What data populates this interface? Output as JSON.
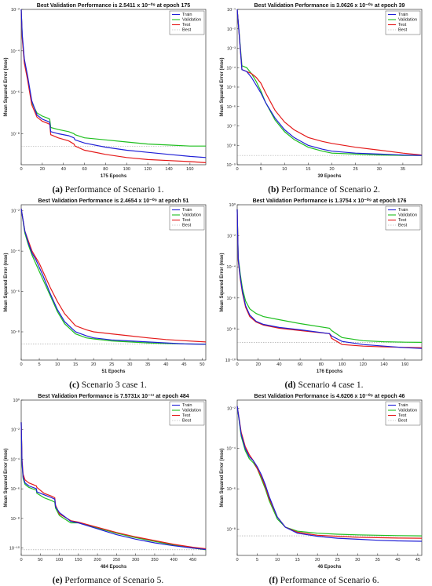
{
  "chart_data": [
    {
      "type": "line",
      "title": "Best Validation Performance is 2.5411 x 10^-09 at epoch 175",
      "title_pre": "Best Validation Performance is 2.5411 x 10",
      "title_exp": "-09",
      "title_post": " at epoch 175",
      "xlabel": "175 Epochs",
      "ylabel": "Mean Squared Error  (mse)",
      "xlim": [
        0,
        175
      ],
      "ylim_exp": [
        -9.5,
        -2
      ],
      "log_y": true,
      "xticks": [
        0,
        20,
        40,
        60,
        80,
        100,
        120,
        140,
        160
      ],
      "yticks_exp": [
        -8,
        -6,
        -4,
        -2
      ],
      "best_exp": -8.6,
      "legend": [
        "Train",
        "Validation",
        "Test",
        "Best"
      ],
      "series": [
        {
          "name": "Train",
          "color": "#1f1fd6",
          "x": [
            0,
            1,
            3,
            6,
            10,
            15,
            20,
            25,
            27,
            28,
            35,
            45,
            50,
            51,
            60,
            80,
            100,
            120,
            140,
            160,
            175
          ],
          "y_exp": [
            -2,
            -3.2,
            -4.4,
            -5.2,
            -6.4,
            -7.1,
            -7.3,
            -7.4,
            -7.45,
            -7.9,
            -8.0,
            -8.1,
            -8.2,
            -8.3,
            -8.45,
            -8.65,
            -8.8,
            -8.9,
            -9.0,
            -9.1,
            -9.15
          ]
        },
        {
          "name": "Validation",
          "color": "#1fbf1f",
          "x": [
            0,
            1,
            3,
            6,
            10,
            15,
            20,
            25,
            27,
            28,
            35,
            45,
            50,
            51,
            60,
            80,
            100,
            120,
            140,
            160,
            175
          ],
          "y_exp": [
            -2,
            -3.3,
            -4.5,
            -5.3,
            -6.5,
            -7.0,
            -7.15,
            -7.25,
            -7.3,
            -7.7,
            -7.8,
            -7.9,
            -8.0,
            -8.05,
            -8.2,
            -8.3,
            -8.4,
            -8.5,
            -8.55,
            -8.6,
            -8.6
          ]
        },
        {
          "name": "Test",
          "color": "#e41a1a",
          "x": [
            0,
            1,
            3,
            6,
            10,
            15,
            20,
            25,
            27,
            28,
            35,
            45,
            50,
            51,
            60,
            80,
            100,
            120,
            140,
            160,
            175
          ],
          "y_exp": [
            -2,
            -3.4,
            -4.6,
            -5.4,
            -6.6,
            -7.2,
            -7.4,
            -7.5,
            -7.55,
            -8.05,
            -8.2,
            -8.35,
            -8.5,
            -8.6,
            -8.8,
            -9.0,
            -9.15,
            -9.25,
            -9.3,
            -9.35,
            -9.4
          ]
        }
      ],
      "caption_label": "(a)",
      "caption_text": " Performance of Scenario 1."
    },
    {
      "type": "line",
      "title": "Best Validation Performance is 3.0626 x 10^-09 at epoch 39",
      "title_pre": "Best Validation Performance is 3.0626 x 10",
      "title_exp": "-09",
      "title_post": " at epoch 39",
      "xlabel": "39 Epochs",
      "ylabel": "Mean Squared Error  (mse)",
      "xlim": [
        0,
        39
      ],
      "ylim_exp": [
        -9,
        -1
      ],
      "log_y": true,
      "xticks": [
        0,
        5,
        10,
        15,
        20,
        25,
        30,
        35
      ],
      "yticks_exp": [
        -9,
        -8,
        -7,
        -6,
        -5,
        -4,
        -3,
        -2,
        -1
      ],
      "best_exp": -8.52,
      "legend": [
        "Train",
        "Validation",
        "Test",
        "Best"
      ],
      "series": [
        {
          "name": "Train",
          "color": "#1f1fd6",
          "x": [
            0,
            1,
            2,
            3,
            4,
            5,
            6,
            8,
            10,
            12,
            15,
            18,
            20,
            25,
            30,
            35,
            39
          ],
          "y_exp": [
            -1,
            -4.1,
            -4.2,
            -4.5,
            -4.9,
            -5.3,
            -5.8,
            -6.6,
            -7.2,
            -7.6,
            -8.0,
            -8.2,
            -8.3,
            -8.4,
            -8.45,
            -8.5,
            -8.52
          ]
        },
        {
          "name": "Validation",
          "color": "#1fbf1f",
          "x": [
            0,
            1,
            2,
            3,
            4,
            5,
            6,
            8,
            10,
            12,
            15,
            18,
            20,
            25,
            30,
            35,
            39
          ],
          "y_exp": [
            -1,
            -3.9,
            -4.0,
            -4.3,
            -4.7,
            -5.2,
            -5.8,
            -6.7,
            -7.3,
            -7.7,
            -8.1,
            -8.3,
            -8.4,
            -8.45,
            -8.5,
            -8.52,
            -8.52
          ]
        },
        {
          "name": "Test",
          "color": "#e41a1a",
          "x": [
            0,
            1,
            2,
            3,
            4,
            5,
            6,
            8,
            10,
            12,
            15,
            18,
            20,
            25,
            30,
            35,
            39
          ],
          "y_exp": [
            -1,
            -4.1,
            -4.2,
            -4.3,
            -4.5,
            -4.8,
            -5.3,
            -6.2,
            -6.8,
            -7.2,
            -7.6,
            -7.8,
            -7.9,
            -8.1,
            -8.25,
            -8.4,
            -8.5
          ]
        }
      ],
      "caption_label": "(b)",
      "caption_text": " Performance of Scenario 2."
    },
    {
      "type": "line",
      "title": "Best Validation Performance is 2.4654 x 10^-09 at epoch 51",
      "title_pre": "Best Validation Performance is 2.4654 x 10",
      "title_exp": "-09",
      "title_post": " at epoch 51",
      "xlabel": "51 Epochs",
      "ylabel": "Mean Squared Error  (mse)",
      "xlim": [
        0,
        51
      ],
      "ylim_exp": [
        -9.4,
        -1.7
      ],
      "log_y": true,
      "xticks": [
        0,
        5,
        10,
        15,
        20,
        25,
        30,
        35,
        40,
        45,
        50
      ],
      "yticks_exp": [
        -8,
        -6,
        -4,
        -2
      ],
      "best_exp": -8.6,
      "legend": [
        "Train",
        "Validation",
        "Test",
        "Best"
      ],
      "series": [
        {
          "name": "Train",
          "color": "#1f1fd6",
          "x": [
            0,
            1,
            2,
            3,
            4,
            5,
            6,
            8,
            10,
            12,
            15,
            18,
            20,
            25,
            30,
            35,
            40,
            45,
            51
          ],
          "y_exp": [
            -1.9,
            -3.0,
            -3.6,
            -4.1,
            -4.4,
            -4.8,
            -5.2,
            -6.1,
            -6.9,
            -7.5,
            -8.0,
            -8.2,
            -8.3,
            -8.4,
            -8.45,
            -8.5,
            -8.55,
            -8.6,
            -8.62
          ]
        },
        {
          "name": "Validation",
          "color": "#1fbf1f",
          "x": [
            0,
            1,
            2,
            3,
            4,
            5,
            6,
            8,
            10,
            12,
            15,
            18,
            20,
            25,
            30,
            35,
            40,
            45,
            51
          ],
          "y_exp": [
            -1.9,
            -3.1,
            -3.7,
            -4.2,
            -4.6,
            -5.0,
            -5.4,
            -6.2,
            -7.0,
            -7.6,
            -8.1,
            -8.3,
            -8.35,
            -8.45,
            -8.5,
            -8.55,
            -8.58,
            -8.6,
            -8.61
          ]
        },
        {
          "name": "Test",
          "color": "#e41a1a",
          "x": [
            0,
            1,
            2,
            3,
            4,
            5,
            6,
            8,
            10,
            12,
            15,
            18,
            20,
            25,
            30,
            35,
            40,
            45,
            51
          ],
          "y_exp": [
            -1.9,
            -3.0,
            -3.5,
            -4.0,
            -4.3,
            -4.6,
            -5.0,
            -5.8,
            -6.5,
            -7.1,
            -7.7,
            -7.9,
            -8.0,
            -8.1,
            -8.2,
            -8.3,
            -8.38,
            -8.44,
            -8.5
          ]
        }
      ],
      "caption_label": "(c)",
      "caption_text": " Scenario 3 case 1."
    },
    {
      "type": "line",
      "title": "Best Validation Performance is 1.3754 x 10^-09 at epoch 176",
      "title_pre": "Best Validation Performance is 1.3754 x 10",
      "title_exp": "-09",
      "title_post": " at epoch 176",
      "xlabel": "176 Epochs",
      "ylabel": "Mean Squared Error  (mse)",
      "xlim": [
        0,
        176
      ],
      "ylim_exp": [
        -10,
        0
      ],
      "log_y": true,
      "xticks": [
        0,
        20,
        40,
        60,
        80,
        100,
        120,
        140,
        160
      ],
      "yticks_exp": [
        -10,
        -8,
        -6,
        -4,
        -2,
        0
      ],
      "best_exp": -8.86,
      "legend": [
        "Train",
        "Validation",
        "Test",
        "Best"
      ],
      "series": [
        {
          "name": "Train",
          "color": "#1f1fd6",
          "x": [
            0,
            1,
            3,
            5,
            8,
            12,
            18,
            25,
            40,
            60,
            88,
            90,
            100,
            120,
            140,
            160,
            176
          ],
          "y_exp": [
            -0.3,
            -3.5,
            -4.7,
            -5.6,
            -6.5,
            -7.1,
            -7.5,
            -7.7,
            -7.9,
            -8.05,
            -8.3,
            -8.45,
            -8.8,
            -9.0,
            -9.1,
            -9.2,
            -9.25
          ]
        },
        {
          "name": "Validation",
          "color": "#1fbf1f",
          "x": [
            0,
            1,
            3,
            5,
            8,
            12,
            18,
            25,
            40,
            60,
            88,
            90,
            100,
            120,
            140,
            160,
            176
          ],
          "y_exp": [
            -0.3,
            -3.4,
            -4.5,
            -5.4,
            -6.2,
            -6.7,
            -7.0,
            -7.2,
            -7.4,
            -7.65,
            -7.95,
            -8.1,
            -8.55,
            -8.75,
            -8.82,
            -8.85,
            -8.86
          ]
        },
        {
          "name": "Test",
          "color": "#e41a1a",
          "x": [
            0,
            1,
            3,
            5,
            8,
            12,
            18,
            25,
            40,
            60,
            88,
            90,
            100,
            120,
            140,
            160,
            176
          ],
          "y_exp": [
            -0.3,
            -3.6,
            -4.8,
            -5.7,
            -6.6,
            -7.2,
            -7.55,
            -7.75,
            -7.95,
            -8.1,
            -8.3,
            -8.6,
            -9.0,
            -9.1,
            -9.15,
            -9.18,
            -9.2
          ]
        }
      ],
      "caption_label": "(d)",
      "caption_text": " Scenario 4 case 1."
    },
    {
      "type": "line",
      "title": "Best Validation Performance is 7.5731x 10^-11 at epoch 484",
      "title_pre": "Best Validation Performance is 7.5731x 10",
      "title_exp": "-11",
      "title_post": " at epoch 484",
      "xlabel": "484 Epochs",
      "ylabel": "Mean Squared Error  (mse)",
      "xlim": [
        0,
        484
      ],
      "ylim_exp": [
        -10.5,
        0
      ],
      "log_y": true,
      "xticks": [
        0,
        50,
        100,
        150,
        200,
        250,
        300,
        350,
        400,
        450
      ],
      "yticks_exp": [
        -10,
        -8,
        -6,
        -4,
        -2,
        0
      ],
      "best_exp": -10.12,
      "legend": [
        "Train",
        "Validation",
        "Test",
        "Best"
      ],
      "series": [
        {
          "name": "Train",
          "color": "#1f1fd6",
          "x": [
            0,
            2,
            5,
            10,
            20,
            40,
            41,
            60,
            80,
            88,
            90,
            100,
            130,
            150,
            200,
            250,
            300,
            350,
            400,
            450,
            484
          ],
          "y_exp": [
            -1.5,
            -4.2,
            -5.2,
            -5.6,
            -5.8,
            -6.0,
            -6.2,
            -6.4,
            -6.6,
            -6.7,
            -7.2,
            -7.6,
            -8.2,
            -8.3,
            -8.7,
            -9.1,
            -9.4,
            -9.65,
            -9.85,
            -10.0,
            -10.1
          ]
        },
        {
          "name": "Validation",
          "color": "#1fbf1f",
          "x": [
            0,
            2,
            5,
            10,
            20,
            40,
            41,
            60,
            80,
            88,
            90,
            100,
            130,
            150,
            200,
            250,
            300,
            350,
            400,
            450,
            484
          ],
          "y_exp": [
            -1.5,
            -4.3,
            -5.3,
            -5.7,
            -5.9,
            -6.1,
            -6.3,
            -6.6,
            -6.8,
            -6.9,
            -7.3,
            -7.8,
            -8.3,
            -8.3,
            -8.65,
            -9.0,
            -9.3,
            -9.55,
            -9.8,
            -10.0,
            -10.12
          ]
        },
        {
          "name": "Test",
          "color": "#e41a1a",
          "x": [
            0,
            2,
            5,
            10,
            20,
            40,
            41,
            60,
            80,
            88,
            90,
            100,
            130,
            150,
            200,
            250,
            300,
            350,
            400,
            450,
            484
          ],
          "y_exp": [
            -1.5,
            -4.0,
            -5.0,
            -5.4,
            -5.6,
            -5.8,
            -5.9,
            -6.3,
            -6.5,
            -6.6,
            -7.1,
            -7.7,
            -8.15,
            -8.25,
            -8.6,
            -8.95,
            -9.25,
            -9.5,
            -9.75,
            -9.95,
            -10.05
          ]
        }
      ],
      "caption_label": "(e)",
      "caption_text": " Performance of Scenario 5."
    },
    {
      "type": "line",
      "title": "Best Validation Performance is 4.6206 x 10^-09 at epoch 46",
      "title_pre": "Best Validation Performance is 4.6206 x 10",
      "title_exp": "-09",
      "title_post": " at epoch 46",
      "xlabel": "46 Epochs",
      "ylabel": "Mean Squared Error  (mse)",
      "xlim": [
        0,
        46
      ],
      "ylim_exp": [
        -9.3,
        -1.6
      ],
      "log_y": true,
      "xticks": [
        0,
        5,
        10,
        15,
        20,
        25,
        30,
        35,
        40,
        45
      ],
      "yticks_exp": [
        -8,
        -6,
        -4,
        -2
      ],
      "best_exp": -8.33,
      "legend": [
        "Train",
        "Validation",
        "Test",
        "Best"
      ],
      "series": [
        {
          "name": "Train",
          "color": "#1f1fd6",
          "x": [
            0,
            1,
            2,
            3,
            4,
            5,
            6,
            7,
            8,
            10,
            12,
            15,
            20,
            25,
            30,
            35,
            40,
            46
          ],
          "y_exp": [
            -1.9,
            -3.3,
            -4.0,
            -4.4,
            -4.6,
            -4.9,
            -5.3,
            -5.8,
            -6.4,
            -7.4,
            -7.9,
            -8.2,
            -8.35,
            -8.45,
            -8.5,
            -8.55,
            -8.58,
            -8.6
          ]
        },
        {
          "name": "Validation",
          "color": "#1fbf1f",
          "x": [
            0,
            1,
            2,
            3,
            4,
            5,
            6,
            7,
            8,
            10,
            12,
            15,
            20,
            25,
            30,
            35,
            40,
            46
          ],
          "y_exp": [
            -1.9,
            -3.4,
            -4.1,
            -4.5,
            -4.7,
            -5.0,
            -5.5,
            -6.0,
            -6.6,
            -7.5,
            -7.9,
            -8.1,
            -8.2,
            -8.25,
            -8.28,
            -8.3,
            -8.32,
            -8.33
          ]
        },
        {
          "name": "Test",
          "color": "#e41a1a",
          "x": [
            0,
            1,
            2,
            3,
            4,
            5,
            6,
            7,
            8,
            10,
            12,
            15,
            20,
            25,
            30,
            35,
            40,
            46
          ],
          "y_exp": [
            -1.9,
            -3.2,
            -3.9,
            -4.3,
            -4.6,
            -5.0,
            -5.4,
            -5.9,
            -6.5,
            -7.4,
            -7.9,
            -8.15,
            -8.3,
            -8.35,
            -8.4,
            -8.42,
            -8.44,
            -8.45
          ]
        }
      ],
      "caption_label": "(f)",
      "caption_text": " Performance of Scenario 6."
    }
  ]
}
